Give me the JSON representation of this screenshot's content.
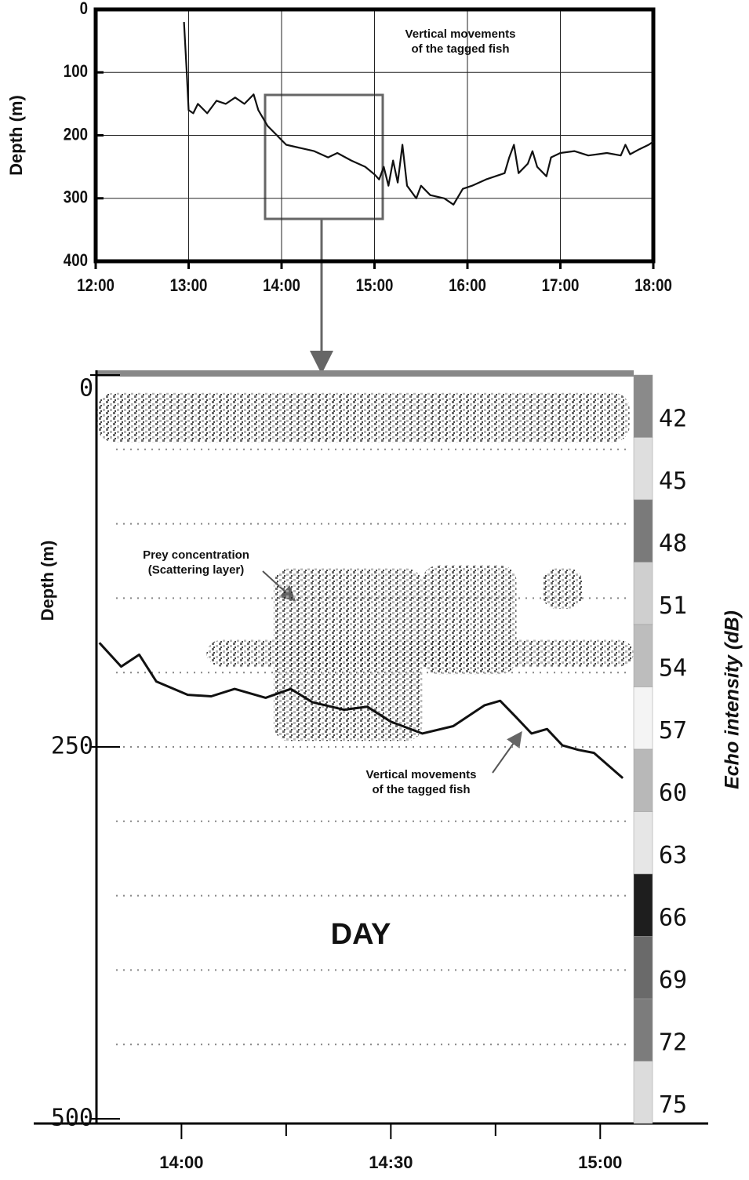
{
  "chart_data": [
    {
      "type": "line",
      "ylabel": "Depth (m)",
      "annotation": [
        "Vertical movements",
        "of the tagged fish"
      ],
      "invert_y": true,
      "grid": true,
      "xlim": [
        12,
        18
      ],
      "xticks": [
        {
          "value": 12,
          "label": "12:00"
        },
        {
          "value": 13,
          "label": "13:00"
        },
        {
          "value": 14,
          "label": "14:00"
        },
        {
          "value": 15,
          "label": "15:00"
        },
        {
          "value": 16,
          "label": "16:00"
        },
        {
          "value": 17,
          "label": "17:00"
        },
        {
          "value": 18,
          "label": "18:00"
        }
      ],
      "ylim": [
        0,
        400
      ],
      "yticks": [
        0,
        100,
        200,
        300,
        400
      ],
      "series": [
        {
          "color": "#111111",
          "x": [
            12.95,
            12.98,
            13.0,
            13.05,
            13.1,
            13.2,
            13.3,
            13.4,
            13.5,
            13.6,
            13.7,
            13.75,
            13.85,
            13.95,
            14.05,
            14.2,
            14.35,
            14.5,
            14.6,
            14.75,
            14.9,
            15.0,
            15.05,
            15.1,
            15.15,
            15.2,
            15.25,
            15.3,
            15.35,
            15.45,
            15.5,
            15.6,
            15.75,
            15.85,
            15.95,
            16.05,
            16.2,
            16.3,
            16.4,
            16.45,
            16.5,
            16.55,
            16.65,
            16.7,
            16.75,
            16.85,
            16.9,
            17.0,
            17.15,
            17.3,
            17.5,
            17.65,
            17.7,
            17.75,
            17.85,
            17.95,
            18.0
          ],
          "values": [
            20,
            100,
            160,
            165,
            150,
            165,
            145,
            150,
            140,
            150,
            135,
            160,
            185,
            200,
            215,
            220,
            225,
            235,
            228,
            240,
            250,
            262,
            270,
            250,
            280,
            240,
            275,
            215,
            280,
            300,
            280,
            295,
            300,
            310,
            285,
            280,
            270,
            265,
            260,
            235,
            215,
            260,
            245,
            225,
            250,
            265,
            235,
            228,
            225,
            232,
            228,
            232,
            215,
            230,
            222,
            215,
            210
          ]
        }
      ]
    },
    {
      "type": "echogram",
      "ylabel": "Depth (m)",
      "invert_y": true,
      "xlim": [
        13.797,
        15.08
      ],
      "xticks": [
        {
          "value": 14,
          "label": "14:00"
        },
        {
          "value": 14.5,
          "label": "14:30"
        },
        {
          "value": 15,
          "label": "15:00"
        }
      ],
      "minor_xticks": [
        14.25,
        14.75
      ],
      "ylim": [
        0,
        500
      ],
      "yticks": [
        0,
        250,
        500
      ],
      "grid_yticks": [
        50,
        100,
        150,
        200,
        250,
        300,
        350,
        400,
        450
      ],
      "annotations": [
        [
          "Prey concentration",
          "(Scattering layer)"
        ],
        [
          "Vertical movements",
          "of the tagged fish"
        ],
        [
          "DAY"
        ]
      ],
      "echo_regions": [
        {
          "x": [
            13.8,
            15.07
          ],
          "depth": [
            12,
            45
          ]
        },
        {
          "x": [
            14.06,
            15.08
          ],
          "depth": [
            178,
            196
          ]
        },
        {
          "x": [
            14.22,
            14.575
          ],
          "depth": [
            130,
            246
          ]
        },
        {
          "x": [
            14.575,
            14.8
          ],
          "depth": [
            128,
            201
          ]
        },
        {
          "x": [
            14.863,
            14.957
          ],
          "depth": [
            130,
            157
          ]
        }
      ],
      "series": [
        {
          "color": "#111111",
          "x": [
            13.804,
            13.856,
            13.899,
            13.94,
            14.015,
            14.071,
            14.127,
            14.201,
            14.261,
            14.313,
            14.388,
            14.444,
            14.5,
            14.575,
            14.649,
            14.724,
            14.761,
            14.799,
            14.836,
            14.873,
            14.91,
            14.948,
            14.985,
            15.054
          ],
          "values": [
            180,
            196,
            188,
            206,
            215,
            216,
            211,
            217,
            211,
            220,
            225,
            223,
            233,
            241,
            236,
            222,
            219,
            230,
            241,
            238,
            249,
            252,
            254,
            271
          ]
        }
      ],
      "colorbar": {
        "label": "Echo intensity (dB)",
        "ticks": [
          42,
          45,
          48,
          51,
          54,
          57,
          60,
          63,
          66,
          69,
          72,
          75
        ],
        "colors": [
          "#8a8a8a",
          "#dedede",
          "#7a7a7a",
          "#cfcfcf",
          "#bdbdbd",
          "#f4f4f4",
          "#b8b8b8",
          "#e6e6e6",
          "#1e1e1e",
          "#6a6a6a",
          "#7c7c7c",
          "#dcdcdc"
        ]
      }
    }
  ]
}
